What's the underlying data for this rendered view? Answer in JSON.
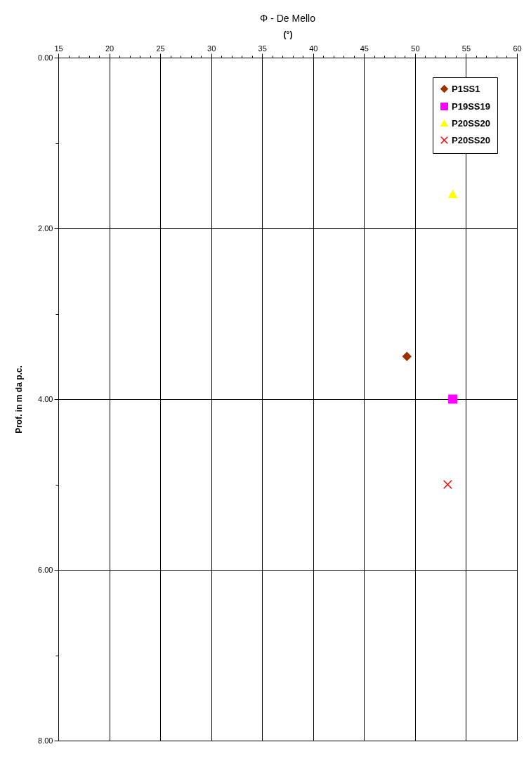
{
  "chart_data": {
    "type": "scatter",
    "title": "Φ - De Mello",
    "xlabel": "(°)",
    "ylabel": "Prof. in m da p.c.",
    "xlim": [
      15,
      60
    ],
    "xticks": [
      15,
      {
        "value": 16,
        "label": null
      },
      {
        "value": 17,
        "label": null
      },
      {
        "value": 18,
        "label": null
      },
      {
        "value": 19,
        "label": null
      },
      20,
      {
        "value": 21,
        "label": null
      },
      {
        "value": 22,
        "label": null
      },
      {
        "value": 23,
        "label": null
      },
      {
        "value": 24,
        "label": null
      },
      25,
      {
        "value": 26,
        "label": null
      },
      {
        "value": 27,
        "label": null
      },
      {
        "value": 28,
        "label": null
      },
      {
        "value": 29,
        "label": null
      },
      30,
      {
        "value": 31,
        "label": null
      },
      {
        "value": 32,
        "label": null
      },
      {
        "value": 33,
        "label": null
      },
      {
        "value": 34,
        "label": null
      },
      35,
      {
        "value": 36,
        "label": null
      },
      {
        "value": 37,
        "label": null
      },
      {
        "value": 38,
        "label": null
      },
      {
        "value": 39,
        "label": null
      },
      40,
      {
        "value": 41,
        "label": null
      },
      {
        "value": 42,
        "label": null
      },
      {
        "value": 43,
        "label": null
      },
      {
        "value": 44,
        "label": null
      },
      45,
      {
        "value": 46,
        "label": null
      },
      {
        "value": 47,
        "label": null
      },
      {
        "value": 48,
        "label": null
      },
      {
        "value": 49,
        "label": null
      },
      50,
      {
        "value": 51,
        "label": null
      },
      {
        "value": 52,
        "label": null
      },
      {
        "value": 53,
        "label": null
      },
      {
        "value": 54,
        "label": null
      },
      55,
      {
        "value": 56,
        "label": null
      },
      {
        "value": 57,
        "label": null
      },
      {
        "value": 58,
        "label": null
      },
      {
        "value": 59,
        "label": null
      },
      60
    ],
    "ylim": [
      8,
      0
    ],
    "yticks": [
      {
        "value": 0,
        "label": "0.00"
      },
      {
        "value": 1,
        "label": null
      },
      {
        "value": 2,
        "label": "2.00"
      },
      {
        "value": 3,
        "label": null
      },
      {
        "value": 4,
        "label": "4.00"
      },
      {
        "value": 5,
        "label": null
      },
      {
        "value": 6,
        "label": "6.00"
      },
      {
        "value": 7,
        "label": null
      },
      {
        "value": 8,
        "label": "8.00"
      }
    ],
    "grid": true,
    "legend": "top right",
    "series": [
      {
        "name": "P1SS1",
        "color": "#993300",
        "marker": "diamond",
        "x": [
          49.2
        ],
        "values": [
          3.5
        ]
      },
      {
        "name": "P19SS19",
        "color": "#ff00ff",
        "marker": "square",
        "x": [
          53.7
        ],
        "values": [
          4.0
        ]
      },
      {
        "name": "P20SS20",
        "color": "#ffff00",
        "marker": "triangle",
        "x": [
          53.7
        ],
        "values": [
          1.6
        ]
      },
      {
        "name": "P20SS20",
        "color": "#ff0000",
        "marker": "cross",
        "x": [
          53.2
        ],
        "values": [
          5.0
        ]
      }
    ]
  }
}
